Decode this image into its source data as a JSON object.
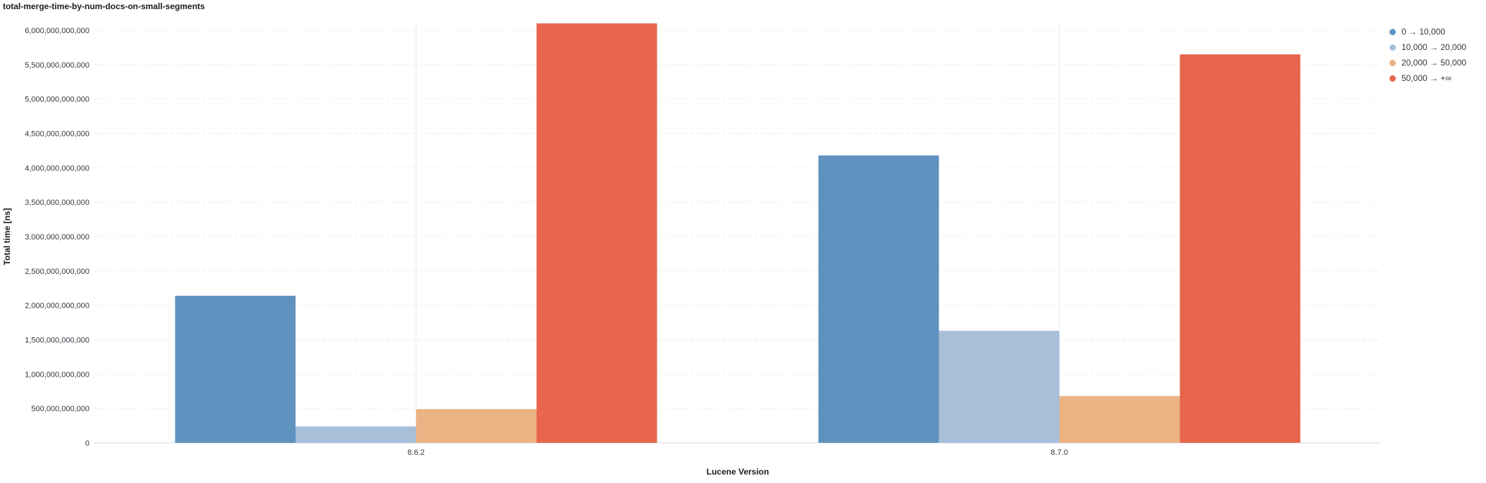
{
  "title": "total-merge-time-by-num-docs-on-small-segments",
  "chart_data": {
    "type": "bar",
    "title": "total-merge-time-by-num-docs-on-small-segments",
    "xlabel": "Lucene Version",
    "ylabel": "Total time [ns]",
    "categories": [
      "8.6.2",
      "8.7.0"
    ],
    "series": [
      {
        "name": "0 → 10,000",
        "color": "#6092c0",
        "values": [
          2140000000000,
          4180000000000
        ]
      },
      {
        "name": "10,000 → 20,000",
        "color": "#a8bfda",
        "values": [
          240000000000,
          1630000000000
        ]
      },
      {
        "name": "20,000 → 50,000",
        "color": "#ebb283",
        "values": [
          490000000000,
          680000000000
        ]
      },
      {
        "name": "50,000 → +∞",
        "color": "#e7664c",
        "values": [
          6100000000000,
          5650000000000
        ]
      }
    ],
    "ylim": [
      0,
      6000000000000
    ],
    "yticks": [
      "0",
      "500,000,000,000",
      "1,000,000,000,000",
      "1,500,000,000,000",
      "2,000,000,000,000",
      "2,500,000,000,000",
      "3,000,000,000,000",
      "3,500,000,000,000",
      "4,000,000,000,000",
      "4,500,000,000,000",
      "5,000,000,000,000",
      "5,500,000,000,000",
      "6,000,000,000,000"
    ],
    "grid": true,
    "legend_position": "top-right"
  }
}
